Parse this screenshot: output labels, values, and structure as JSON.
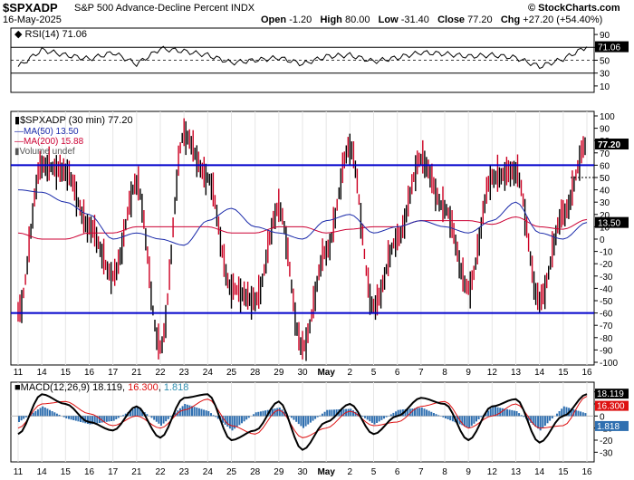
{
  "header": {
    "symbol": "$SPXADP",
    "name": "S&P 500 Advance-Decline Percent",
    "exchange": "INDX",
    "date": "16-May-2025",
    "brand": "© StockCharts.com",
    "open_label": "Open",
    "open": "-1.20",
    "high_label": "High",
    "high": "80.00",
    "low_label": "Low",
    "low": "-31.40",
    "close_label": "Close",
    "close": "77.20",
    "chg_label": "Chg",
    "chg": "+27.20 (+54.40%)"
  },
  "rsi_panel": {
    "legend": "RSI(14) 71.06",
    "last_value": "71.06",
    "ticks": [
      "90",
      "70",
      "50",
      "30",
      "10"
    ],
    "overbought": 70,
    "oversold": 30
  },
  "main_panel": {
    "legend_price": "$SPXADP (30 min) 77.20",
    "legend_ma50": "MA(50) 13.50",
    "legend_ma200": "MA(200) 15.88",
    "legend_volume": "Volume undef",
    "last_price": "77.20",
    "ma50_tag": "13.50",
    "ma200_tag": "15.88",
    "ticks": [
      "100",
      "90",
      "80",
      "70",
      "60",
      "50",
      "40",
      "30",
      "20",
      "10",
      "0",
      "-10",
      "-20",
      "-30",
      "-40",
      "-50",
      "-60",
      "-70",
      "-80",
      "-90",
      "-100"
    ],
    "upper_line": 60,
    "lower_line": -60,
    "dashed_level": 50
  },
  "macd_panel": {
    "legend_prefix": "MACD(12,26,9)",
    "macd": "18.119",
    "signal": "16.300",
    "hist": "1.818",
    "ticks": [
      "20",
      "10",
      "0",
      "-10",
      "-20",
      "-30"
    ]
  },
  "x_axis": {
    "labels": [
      "11",
      "14",
      "15",
      "16",
      "17",
      "21",
      "22",
      "23",
      "24",
      "25",
      "28",
      "29",
      "30",
      "May",
      "2",
      "5",
      "6",
      "7",
      "8",
      "9",
      "12",
      "13",
      "14",
      "15",
      "16"
    ]
  },
  "colors": {
    "price_up": "#000000",
    "price_down": "#cc0022",
    "ma50": "#1a2aaa",
    "ma200": "#cc0033",
    "hline": "#0000cc",
    "macd_line": "#000000",
    "signal_line": "#dd1111",
    "histogram": "#2f6fb0",
    "value_tag": "#000000"
  },
  "chart_data": [
    {
      "type": "line",
      "title": "RSI(14)",
      "ylim": [
        0,
        100
      ],
      "x": [
        "11",
        "14",
        "15",
        "16",
        "17",
        "21",
        "22",
        "23",
        "24",
        "25",
        "28",
        "29",
        "30",
        "May",
        "2",
        "5",
        "6",
        "7",
        "8",
        "9",
        "12",
        "13",
        "14",
        "15",
        "16"
      ],
      "series": [
        {
          "name": "RSI(14)",
          "values": [
            40,
            66,
            58,
            52,
            62,
            44,
            68,
            64,
            58,
            46,
            50,
            54,
            44,
            56,
            58,
            48,
            54,
            62,
            60,
            56,
            58,
            54,
            40,
            52,
            71
          ]
        }
      ]
    },
    {
      "type": "line",
      "title": "$SPXADP (30 min)",
      "ylim": [
        -100,
        100
      ],
      "x": [
        "11",
        "14",
        "15",
        "16",
        "17",
        "21",
        "22",
        "23",
        "24",
        "25",
        "28",
        "29",
        "30",
        "May",
        "2",
        "5",
        "6",
        "7",
        "8",
        "9",
        "12",
        "13",
        "14",
        "15",
        "16"
      ],
      "series": [
        {
          "name": "$SPXADP",
          "values": [
            -60,
            60,
            55,
            10,
            -30,
            45,
            -88,
            85,
            50,
            -40,
            -50,
            25,
            -88,
            -10,
            75,
            -55,
            0,
            65,
            25,
            -40,
            50,
            55,
            -50,
            20,
            77.2
          ]
        },
        {
          "name": "MA(50)",
          "values": [
            40,
            38,
            30,
            20,
            0,
            5,
            0,
            -5,
            15,
            25,
            10,
            5,
            0,
            15,
            20,
            5,
            10,
            15,
            10,
            5,
            15,
            30,
            5,
            0,
            13.5
          ]
        },
        {
          "name": "MA(200)",
          "values": [
            5,
            0,
            0,
            5,
            5,
            10,
            10,
            10,
            10,
            5,
            5,
            10,
            10,
            5,
            8,
            10,
            10,
            15,
            15,
            15,
            12,
            18,
            10,
            8,
            15.88
          ]
        }
      ],
      "reference_lines": [
        60,
        -60
      ]
    },
    {
      "type": "line",
      "title": "MACD(12,26,9)",
      "ylim": [
        -35,
        25
      ],
      "x": [
        "11",
        "14",
        "15",
        "16",
        "17",
        "21",
        "22",
        "23",
        "24",
        "25",
        "28",
        "29",
        "30",
        "May",
        "2",
        "5",
        "6",
        "7",
        "8",
        "9",
        "12",
        "13",
        "14",
        "15",
        "16"
      ],
      "series": [
        {
          "name": "MACD",
          "values": [
            -15,
            18,
            10,
            -5,
            -12,
            8,
            -18,
            15,
            18,
            -20,
            -12,
            12,
            -28,
            -5,
            10,
            -15,
            0,
            15,
            10,
            -20,
            8,
            14,
            -22,
            0,
            18.119
          ]
        },
        {
          "name": "Signal",
          "values": [
            -10,
            10,
            12,
            2,
            -8,
            0,
            -10,
            5,
            14,
            -8,
            -15,
            5,
            -18,
            -10,
            4,
            -8,
            -5,
            8,
            12,
            -10,
            0,
            10,
            -10,
            -8,
            16.3
          ]
        },
        {
          "name": "Histogram",
          "values": [
            -5,
            8,
            -2,
            -7,
            -4,
            8,
            -8,
            10,
            4,
            -12,
            3,
            7,
            -10,
            5,
            6,
            -7,
            5,
            7,
            -2,
            -10,
            8,
            4,
            -12,
            8,
            1.818
          ]
        }
      ]
    }
  ]
}
